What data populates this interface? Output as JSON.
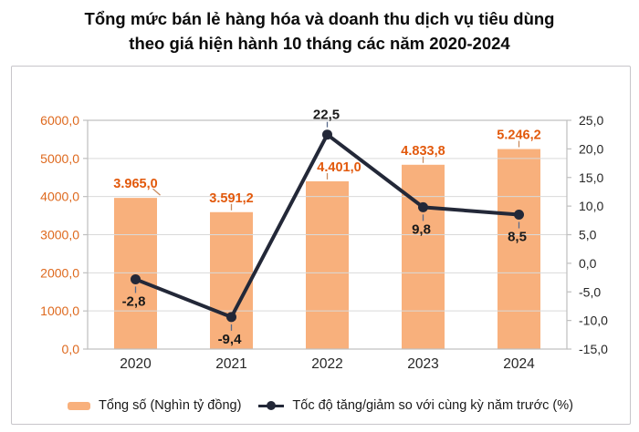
{
  "title": {
    "line1": "Tổng mức bán lẻ hàng hóa và doanh thu dịch vụ tiêu dùng",
    "line2": "theo giá hiện hành 10 tháng các năm 2020-2024"
  },
  "legend": {
    "bar_label": "Tổng số (Nghìn tỷ đồng)",
    "line_label": "Tốc độ tăng/giảm so với cùng kỳ năm trước (%)"
  },
  "colors": {
    "bar_fill": "#F8B07C",
    "bar_value_label": "#E2590C",
    "left_axis_label": "#DE691E",
    "right_axis_label": "#262626",
    "category_label": "#262626",
    "line": "#232838",
    "line_value_label": "#1a1a1a",
    "gridline": "#D9D9D9",
    "plot_border": "#BFBFBF",
    "bar_leader": "#C98B5E",
    "line_leader": "#5A6B8C"
  },
  "chart_data": {
    "type": "bar+line combo",
    "title": "Tổng mức bán lẻ hàng hóa và doanh thu dịch vụ tiêu dùng theo giá hiện hành 10 tháng các năm 2020-2024",
    "categories": [
      "2020",
      "2021",
      "2022",
      "2023",
      "2024"
    ],
    "series": [
      {
        "name": "Tổng số (Nghìn tỷ đồng)",
        "type": "bar",
        "axis": "left",
        "values": [
          3965.0,
          3591.2,
          4401.0,
          4833.8,
          5246.2
        ],
        "value_labels": [
          "3.965,0",
          "3.591,2",
          "4.401,0",
          "4.833,8",
          "5.246,2"
        ]
      },
      {
        "name": "Tốc độ tăng/giảm so với cùng kỳ năm trước (%)",
        "type": "line",
        "axis": "right",
        "values": [
          -2.8,
          -9.4,
          22.5,
          9.8,
          8.5
        ],
        "value_labels": [
          "-2,8",
          "-9,4",
          "22,5",
          "9,8",
          "8,5"
        ],
        "label_side": [
          "below",
          "below",
          "above",
          "below",
          "below"
        ]
      }
    ],
    "left_axis": {
      "min": 0,
      "max": 6000,
      "step": 1000,
      "tick_labels": [
        "0,0",
        "1000,0",
        "2000,0",
        "3000,0",
        "4000,0",
        "5000,0",
        "6000,0"
      ]
    },
    "right_axis": {
      "min": -15,
      "max": 25,
      "step": 5,
      "tick_labels": [
        "-15,0",
        "-10,0",
        "-5,0",
        "0,0",
        "5,0",
        "10,0",
        "15,0",
        "20,0",
        "25,0"
      ]
    },
    "grid": "horizontal at left-axis ticks",
    "legend_position": "bottom"
  }
}
